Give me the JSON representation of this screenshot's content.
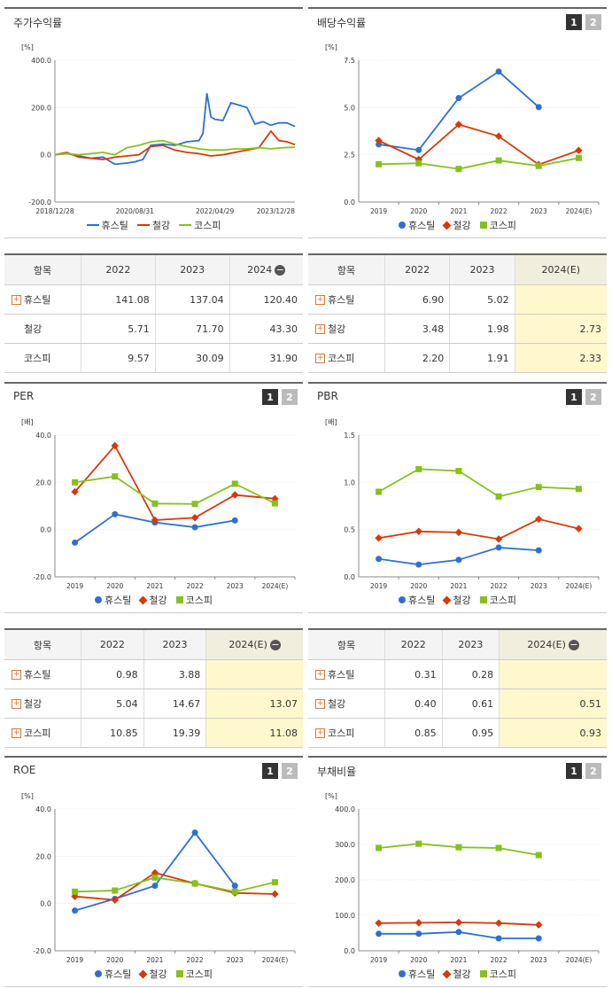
{
  "colors": {
    "hus": "#2f6fd0",
    "steel": "#d33a0d",
    "kospi": "#86c01e"
  },
  "series_names": [
    "휴스틸",
    "철강",
    "코스피"
  ],
  "charts": {
    "stock": {
      "title": "주가수익률",
      "unit": "[%]",
      "yticks": [
        "400.0",
        "200.0",
        "0.0",
        "-200.0"
      ],
      "xticks": [
        "2018/12/28",
        "2020/08/31",
        "2022/04/29",
        "2023/12/28"
      ]
    },
    "div": {
      "title": "배당수익률",
      "unit": "[%]",
      "yticks": [
        "7.5",
        "5.0",
        "2.5",
        "0.0"
      ],
      "xticks": [
        "2019",
        "2020",
        "2021",
        "2022",
        "2023",
        "2024(E)"
      ],
      "toggle": [
        "1",
        "2"
      ]
    },
    "per": {
      "title": "PER",
      "unit": "[배]",
      "yticks": [
        "40.0",
        "20.0",
        "0.0",
        "-20.0"
      ],
      "xticks": [
        "2019",
        "2020",
        "2021",
        "2022",
        "2023",
        "2024(E)"
      ],
      "toggle": [
        "1",
        "2"
      ]
    },
    "pbr": {
      "title": "PBR",
      "unit": "[배]",
      "yticks": [
        "1.5",
        "1.0",
        "0.5",
        "0.0"
      ],
      "xticks": [
        "2019",
        "2020",
        "2021",
        "2022",
        "2023",
        "2024(E)"
      ],
      "toggle": [
        "1",
        "2"
      ]
    },
    "roe": {
      "title": "ROE",
      "unit": "[%]",
      "yticks": [
        "40.0",
        "20.0",
        "0.0",
        "-20.0"
      ],
      "xticks": [
        "2019",
        "2020",
        "2021",
        "2022",
        "2023",
        "2024(E)"
      ],
      "toggle": [
        "1",
        "2"
      ]
    },
    "debt": {
      "title": "부채비율",
      "unit": "[%]",
      "yticks": [
        "400.0",
        "300.0",
        "200.0",
        "100.0",
        "0.0"
      ],
      "xticks": [
        "2019",
        "2020",
        "2021",
        "2022",
        "2023",
        "2024(E)"
      ],
      "toggle": [
        "1",
        "2"
      ]
    }
  },
  "tables": {
    "stock": {
      "headers": [
        "항목",
        "2022",
        "2023",
        "2024"
      ],
      "rows": [
        {
          "name": "휴스틸",
          "vals": [
            "141.08",
            "137.04",
            "120.40"
          ]
        },
        {
          "name": "철강",
          "vals": [
            "5.71",
            "71.70",
            "43.30"
          ]
        },
        {
          "name": "코스피",
          "vals": [
            "9.57",
            "30.09",
            "31.90"
          ]
        }
      ]
    },
    "div": {
      "headers": [
        "항목",
        "2022",
        "2023",
        "2024(E)"
      ],
      "rows": [
        {
          "name": "휴스틸",
          "vals": [
            "6.90",
            "5.02",
            ""
          ]
        },
        {
          "name": "철강",
          "vals": [
            "3.48",
            "1.98",
            "2.73"
          ]
        },
        {
          "name": "코스피",
          "vals": [
            "2.20",
            "1.91",
            "2.33"
          ]
        }
      ]
    },
    "per": {
      "headers": [
        "항목",
        "2022",
        "2023",
        "2024(E)"
      ],
      "rows": [
        {
          "name": "휴스틸",
          "vals": [
            "0.98",
            "3.88",
            ""
          ]
        },
        {
          "name": "철강",
          "vals": [
            "5.04",
            "14.67",
            "13.07"
          ]
        },
        {
          "name": "코스피",
          "vals": [
            "10.85",
            "19.39",
            "11.08"
          ]
        }
      ]
    },
    "pbr": {
      "headers": [
        "항목",
        "2022",
        "2023",
        "2024(E)"
      ],
      "rows": [
        {
          "name": "휴스틸",
          "vals": [
            "0.31",
            "0.28",
            ""
          ]
        },
        {
          "name": "철강",
          "vals": [
            "0.40",
            "0.61",
            "0.51"
          ]
        },
        {
          "name": "코스피",
          "vals": [
            "0.85",
            "0.95",
            "0.93"
          ]
        }
      ]
    }
  },
  "chart_data": [
    {
      "id": "stock",
      "type": "line",
      "ylim": [
        -200,
        400
      ],
      "xlim": [
        0,
        60
      ],
      "x_note": "months from 2018/12 to 2023/12",
      "series": [
        {
          "name": "휴스틸",
          "x": [
            0,
            3,
            6,
            9,
            12,
            15,
            18,
            20,
            22,
            24,
            27,
            30,
            33,
            36,
            37,
            38,
            39,
            40,
            42,
            44,
            46,
            48,
            50,
            52,
            54,
            56,
            58,
            60
          ],
          "y": [
            0,
            5,
            -5,
            -15,
            -10,
            -40,
            -35,
            -30,
            -20,
            40,
            45,
            40,
            55,
            60,
            90,
            260,
            160,
            150,
            145,
            220,
            210,
            200,
            130,
            140,
            125,
            135,
            135,
            120
          ]
        },
        {
          "name": "철강",
          "x": [
            0,
            3,
            6,
            9,
            12,
            15,
            18,
            21,
            24,
            27,
            30,
            33,
            36,
            39,
            42,
            45,
            48,
            51,
            54,
            56,
            58,
            60
          ],
          "y": [
            0,
            10,
            -10,
            -15,
            -20,
            -10,
            -5,
            0,
            35,
            40,
            20,
            10,
            5,
            -5,
            0,
            10,
            20,
            30,
            100,
            60,
            55,
            43
          ]
        },
        {
          "name": "코스피",
          "x": [
            0,
            3,
            6,
            9,
            12,
            15,
            18,
            21,
            24,
            27,
            30,
            33,
            36,
            39,
            42,
            45,
            48,
            51,
            54,
            57,
            60
          ],
          "y": [
            0,
            5,
            0,
            5,
            10,
            0,
            30,
            40,
            55,
            60,
            45,
            35,
            25,
            20,
            20,
            25,
            25,
            30,
            25,
            30,
            32
          ]
        }
      ]
    },
    {
      "id": "div",
      "type": "line",
      "categories": [
        "2019",
        "2020",
        "2021",
        "2022",
        "2023",
        "2024(E)"
      ],
      "ylim": [
        0,
        7.5
      ],
      "series": [
        {
          "name": "휴스틸",
          "values": [
            3.05,
            2.75,
            5.5,
            6.9,
            5.02,
            null
          ]
        },
        {
          "name": "철강",
          "values": [
            3.25,
            2.25,
            4.1,
            3.48,
            1.98,
            2.73
          ]
        },
        {
          "name": "코스피",
          "values": [
            2.0,
            2.05,
            1.75,
            2.2,
            1.91,
            2.33
          ]
        }
      ]
    },
    {
      "id": "per",
      "type": "line",
      "categories": [
        "2019",
        "2020",
        "2021",
        "2022",
        "2023",
        "2024(E)"
      ],
      "ylim": [
        -20,
        40
      ],
      "series": [
        {
          "name": "휴스틸",
          "values": [
            -5.5,
            6.5,
            3.0,
            0.98,
            3.88,
            null
          ]
        },
        {
          "name": "철강",
          "values": [
            16.0,
            35.5,
            4.0,
            5.04,
            14.67,
            13.07
          ]
        },
        {
          "name": "코스피",
          "values": [
            20.0,
            22.5,
            11.0,
            10.85,
            19.39,
            11.08
          ]
        }
      ]
    },
    {
      "id": "pbr",
      "type": "line",
      "categories": [
        "2019",
        "2020",
        "2021",
        "2022",
        "2023",
        "2024(E)"
      ],
      "ylim": [
        0,
        1.5
      ],
      "series": [
        {
          "name": "휴스틸",
          "values": [
            0.19,
            0.13,
            0.18,
            0.31,
            0.28,
            null
          ]
        },
        {
          "name": "철강",
          "values": [
            0.41,
            0.48,
            0.47,
            0.4,
            0.61,
            0.51
          ]
        },
        {
          "name": "코스피",
          "values": [
            0.9,
            1.14,
            1.12,
            0.85,
            0.95,
            0.93
          ]
        }
      ]
    },
    {
      "id": "roe",
      "type": "line",
      "categories": [
        "2019",
        "2020",
        "2021",
        "2022",
        "2023",
        "2024(E)"
      ],
      "ylim": [
        -20,
        40
      ],
      "series": [
        {
          "name": "휴스틸",
          "values": [
            -3.0,
            2.0,
            7.5,
            30.0,
            7.5,
            null
          ]
        },
        {
          "name": "철강",
          "values": [
            3.0,
            1.5,
            13.0,
            8.5,
            4.5,
            4.0
          ]
        },
        {
          "name": "코스피",
          "values": [
            5.0,
            5.5,
            11.0,
            8.5,
            5.0,
            9.0
          ]
        }
      ]
    },
    {
      "id": "debt",
      "type": "line",
      "categories": [
        "2019",
        "2020",
        "2021",
        "2022",
        "2023",
        "2024(E)"
      ],
      "ylim": [
        0,
        400
      ],
      "series": [
        {
          "name": "휴스틸",
          "values": [
            48,
            48,
            53,
            35,
            35,
            null
          ]
        },
        {
          "name": "철강",
          "values": [
            78,
            79,
            80,
            78,
            73,
            null
          ]
        },
        {
          "name": "코스피",
          "values": [
            290,
            302,
            292,
            290,
            270,
            null
          ]
        }
      ]
    }
  ]
}
